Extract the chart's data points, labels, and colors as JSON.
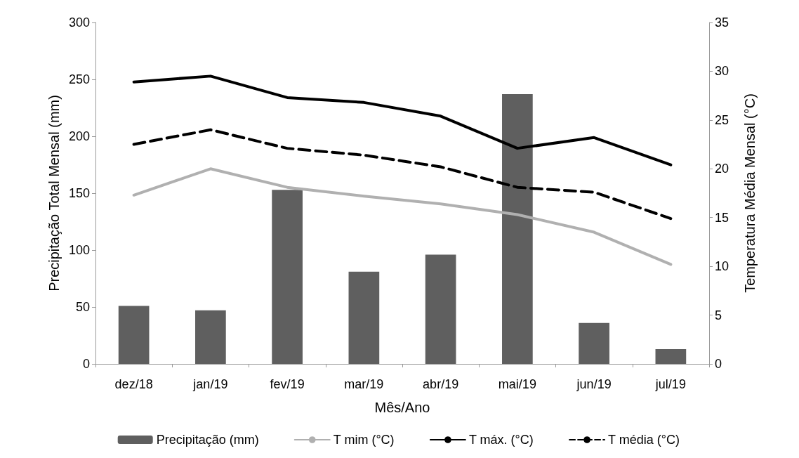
{
  "chart_data": {
    "type": "bar",
    "xlabel": "Mês/Ano",
    "ylabel": "Precipitação Total Mensal (mm)",
    "y2label": "Temperatura Média Mensal (°C)",
    "categories": [
      "dez/18",
      "jan/19",
      "fev/19",
      "mar/19",
      "abr/19",
      "mai/19",
      "jun/19",
      "jul/19"
    ],
    "series": [
      {
        "name": "Precipitação (mm)",
        "color": "#5f5f5f",
        "values": [
          51,
          47,
          153,
          81,
          96,
          237,
          36,
          13
        ]
      },
      {
        "name": "T mim (°C)",
        "type": "line",
        "axis": "y2",
        "color": "#b0b0b0",
        "line_style": "solid",
        "values": [
          17.3,
          20.0,
          18.1,
          17.2,
          16.4,
          15.3,
          13.5,
          10.2
        ]
      },
      {
        "name": "T máx. (°C)",
        "type": "line",
        "axis": "y2",
        "color": "#000000",
        "line_style": "solid",
        "values": [
          28.9,
          29.5,
          27.3,
          26.8,
          25.4,
          22.1,
          23.2,
          20.4
        ]
      },
      {
        "name": "T média (°C)",
        "type": "line",
        "axis": "y2",
        "color": "#000000",
        "line_style": "dashed",
        "values": [
          22.5,
          24.0,
          22.1,
          21.4,
          20.2,
          18.1,
          17.6,
          14.9
        ]
      }
    ],
    "ylim": [
      0,
      300
    ],
    "yticks": [
      0,
      50,
      100,
      150,
      200,
      250,
      300
    ],
    "y2lim": [
      0,
      35
    ],
    "y2ticks": [
      0,
      5,
      10,
      15,
      20,
      25,
      30,
      35
    ],
    "grid": false,
    "legend": "bottom",
    "marker": "none"
  }
}
